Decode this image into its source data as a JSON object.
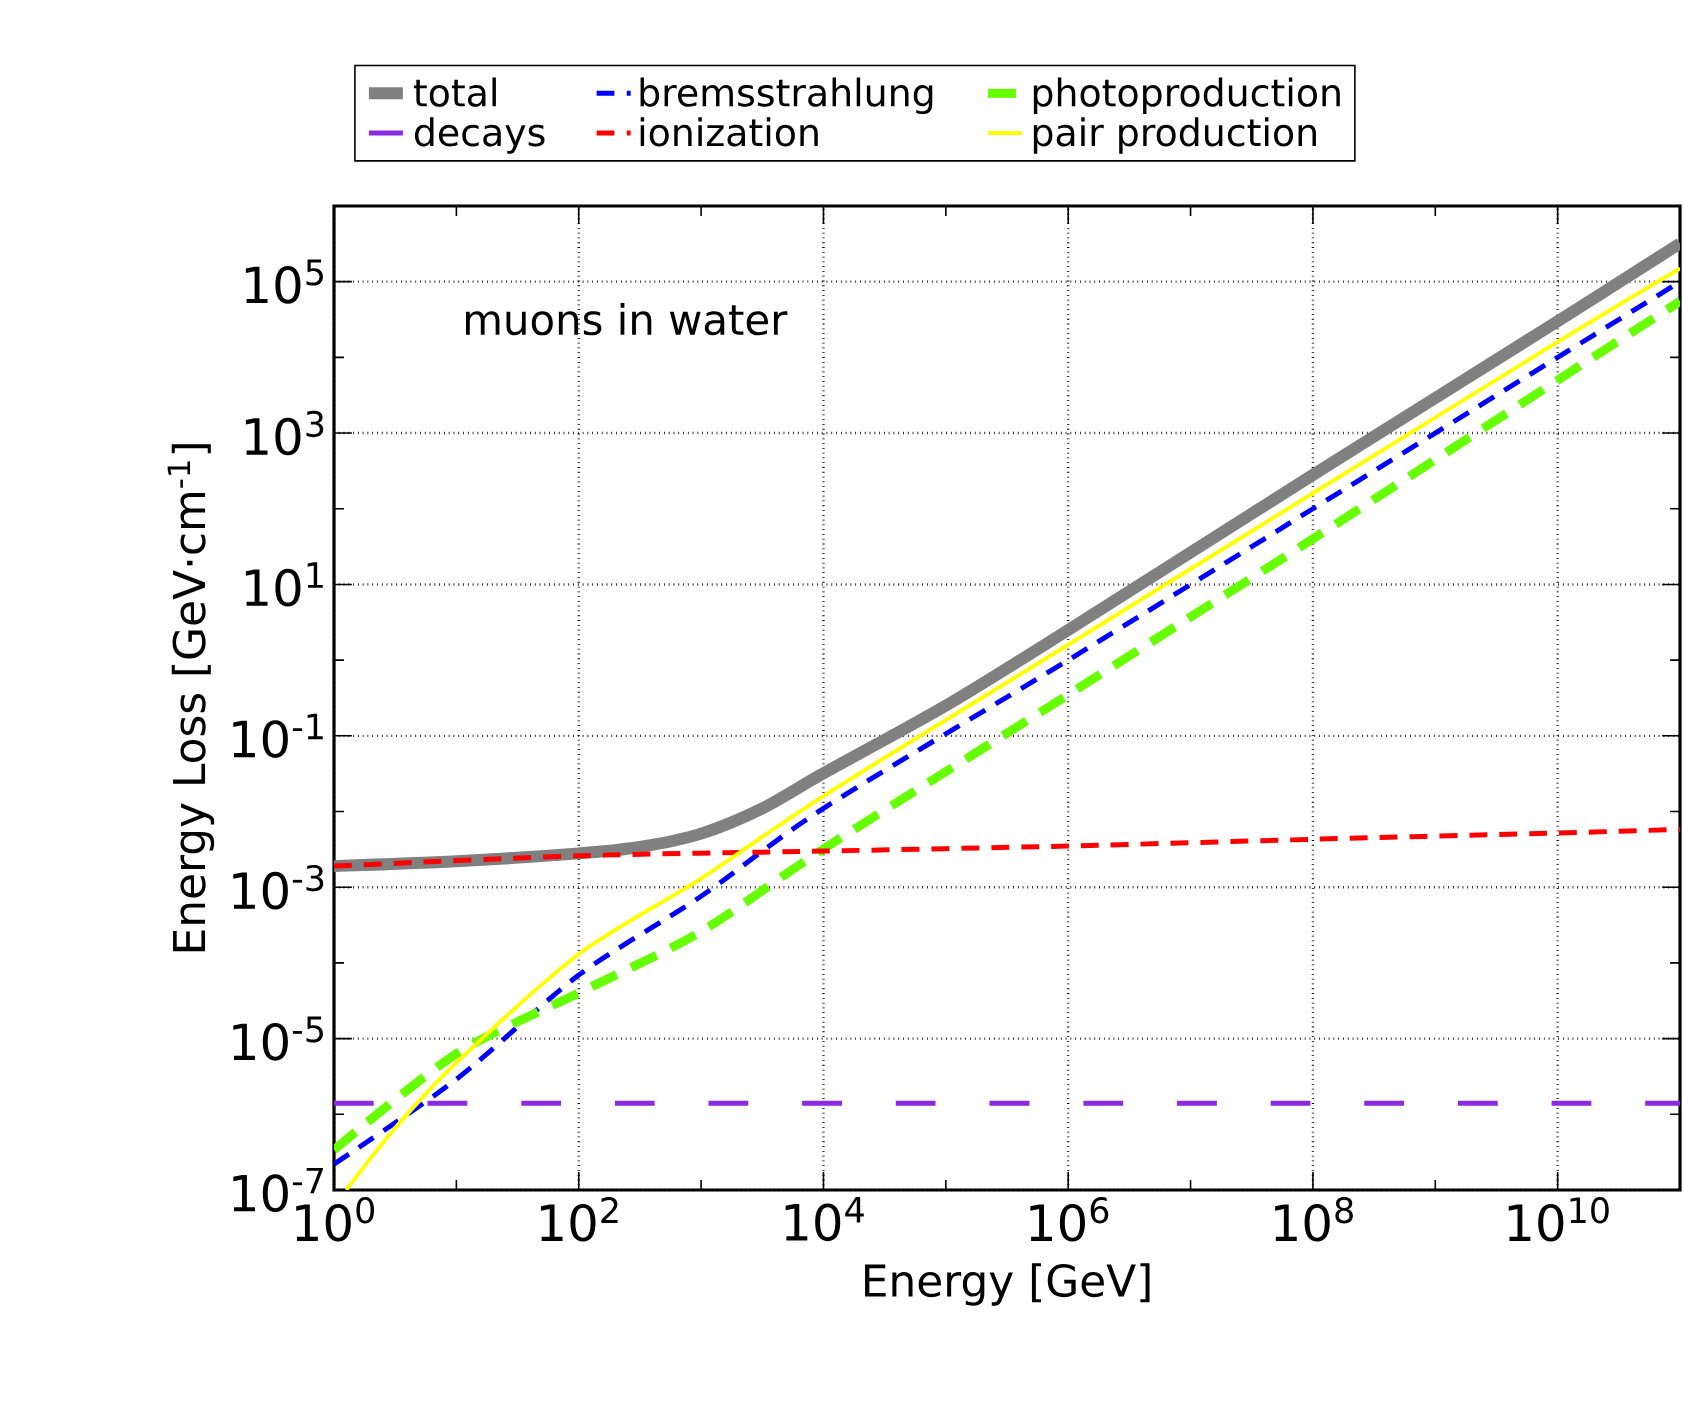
{
  "chart_data": {
    "type": "line",
    "xlabel": "Energy [GeV]",
    "ylabel": "Energy Loss [GeV·cm$^{-1}$]",
    "annotations": [
      "muons in water"
    ],
    "log": "xy",
    "grid": true,
    "legend": "top",
    "marker": "none",
    "xlim": [
      1,
      100000000000.0
    ],
    "ylim": [
      1e-07,
      1000000.0
    ],
    "xticks": [
      {
        "value": 1,
        "label": "10$^{0}$"
      },
      {
        "value": 10,
        "label": null
      },
      {
        "value": 100,
        "label": "10$^{2}$"
      },
      {
        "value": 1000,
        "label": null
      },
      {
        "value": 10000.0,
        "label": "10$^{4}$"
      },
      {
        "value": 100000.0,
        "label": null
      },
      {
        "value": 1000000.0,
        "label": "10$^{6}$"
      },
      {
        "value": 10000000.0,
        "label": null
      },
      {
        "value": 100000000.0,
        "label": "10$^{8}$"
      },
      {
        "value": 1000000000.0,
        "label": null
      },
      {
        "value": 10000000000.0,
        "label": "10$^{10}$"
      },
      {
        "value": 100000000000.0,
        "label": null
      }
    ],
    "yticks": [
      {
        "value": 1e-07,
        "label": "10$^{-7}$"
      },
      {
        "value": 1e-06,
        "label": null
      },
      {
        "value": 1e-05,
        "label": "10$^{-5}$"
      },
      {
        "value": 0.0001,
        "label": null
      },
      {
        "value": 0.001,
        "label": "10$^{-3}$"
      },
      {
        "value": 0.01,
        "label": null
      },
      {
        "value": 0.1,
        "label": "10$^{-1}$"
      },
      {
        "value": 1,
        "label": null
      },
      {
        "value": 10,
        "label": "10$^{1}$"
      },
      {
        "value": 100,
        "label": null
      },
      {
        "value": 1000,
        "label": "10$^{3}$"
      },
      {
        "value": 10000.0,
        "label": null
      },
      {
        "value": 100000.0,
        "label": "10$^{5}$"
      },
      {
        "value": 1000000.0,
        "label": null
      }
    ],
    "series": [
      {
        "name": "total",
        "color": "#808080",
        "line_style": "solid",
        "x": [
          1,
          10,
          100,
          316,
          1000,
          3162,
          10000.0,
          100000.0,
          1000000.0,
          100000000.0,
          10000000000.0,
          100000000000.0
        ],
        "values": [
          0.0019,
          0.0022,
          0.0028,
          0.0034,
          0.0051,
          0.011,
          0.032,
          0.25,
          2.5,
          280,
          30000.0,
          320000.0
        ]
      },
      {
        "name": "bremsstrahlung",
        "color": "#0000ff",
        "line_style": "dashed",
        "x": [
          1,
          10,
          100,
          1000,
          10000.0,
          1000000.0,
          100000000.0,
          10000000000.0,
          100000000000.0
        ],
        "values": [
          2.2e-07,
          2.9e-06,
          6.9e-05,
          0.00076,
          0.011,
          1.0,
          100,
          10000.0,
          100000.0
        ]
      },
      {
        "name": "photoproduction",
        "color": "#66ff00",
        "line_style": "dashed",
        "x": [
          1,
          10,
          100,
          1000,
          10000.0,
          1000000.0,
          100000000.0,
          10000000000.0,
          100000000000.0
        ],
        "values": [
          3.4e-07,
          6.3e-06,
          4e-05,
          0.00026,
          0.0032,
          0.35,
          40,
          5000,
          55000.0
        ]
      },
      {
        "name": "decays",
        "color": "#8a2be2",
        "line_style": "dashed",
        "x": [
          1,
          100000000000.0
        ],
        "values": [
          1.4e-06,
          1.4e-06
        ]
      },
      {
        "name": "ionization",
        "color": "#ff0000",
        "line_style": "dashed",
        "x": [
          1,
          100,
          10000.0,
          1000000.0,
          100000000.0,
          10000000000.0,
          100000000000.0
        ],
        "values": [
          0.0019,
          0.0026,
          0.003,
          0.0035,
          0.0043,
          0.0052,
          0.0058
        ]
      },
      {
        "name": "pair production",
        "color": "#ffff00",
        "line_style": "solid",
        "x": [
          1.26,
          3.16,
          10,
          100,
          1000,
          10000.0,
          1000000.0,
          100000000.0,
          10000000000.0,
          100000000000.0
        ],
        "values": [
          1e-07,
          6.6e-07,
          4.8e-06,
          0.00013,
          0.0013,
          0.016,
          1.6,
          160,
          16000.0,
          150000.0
        ]
      }
    ]
  }
}
